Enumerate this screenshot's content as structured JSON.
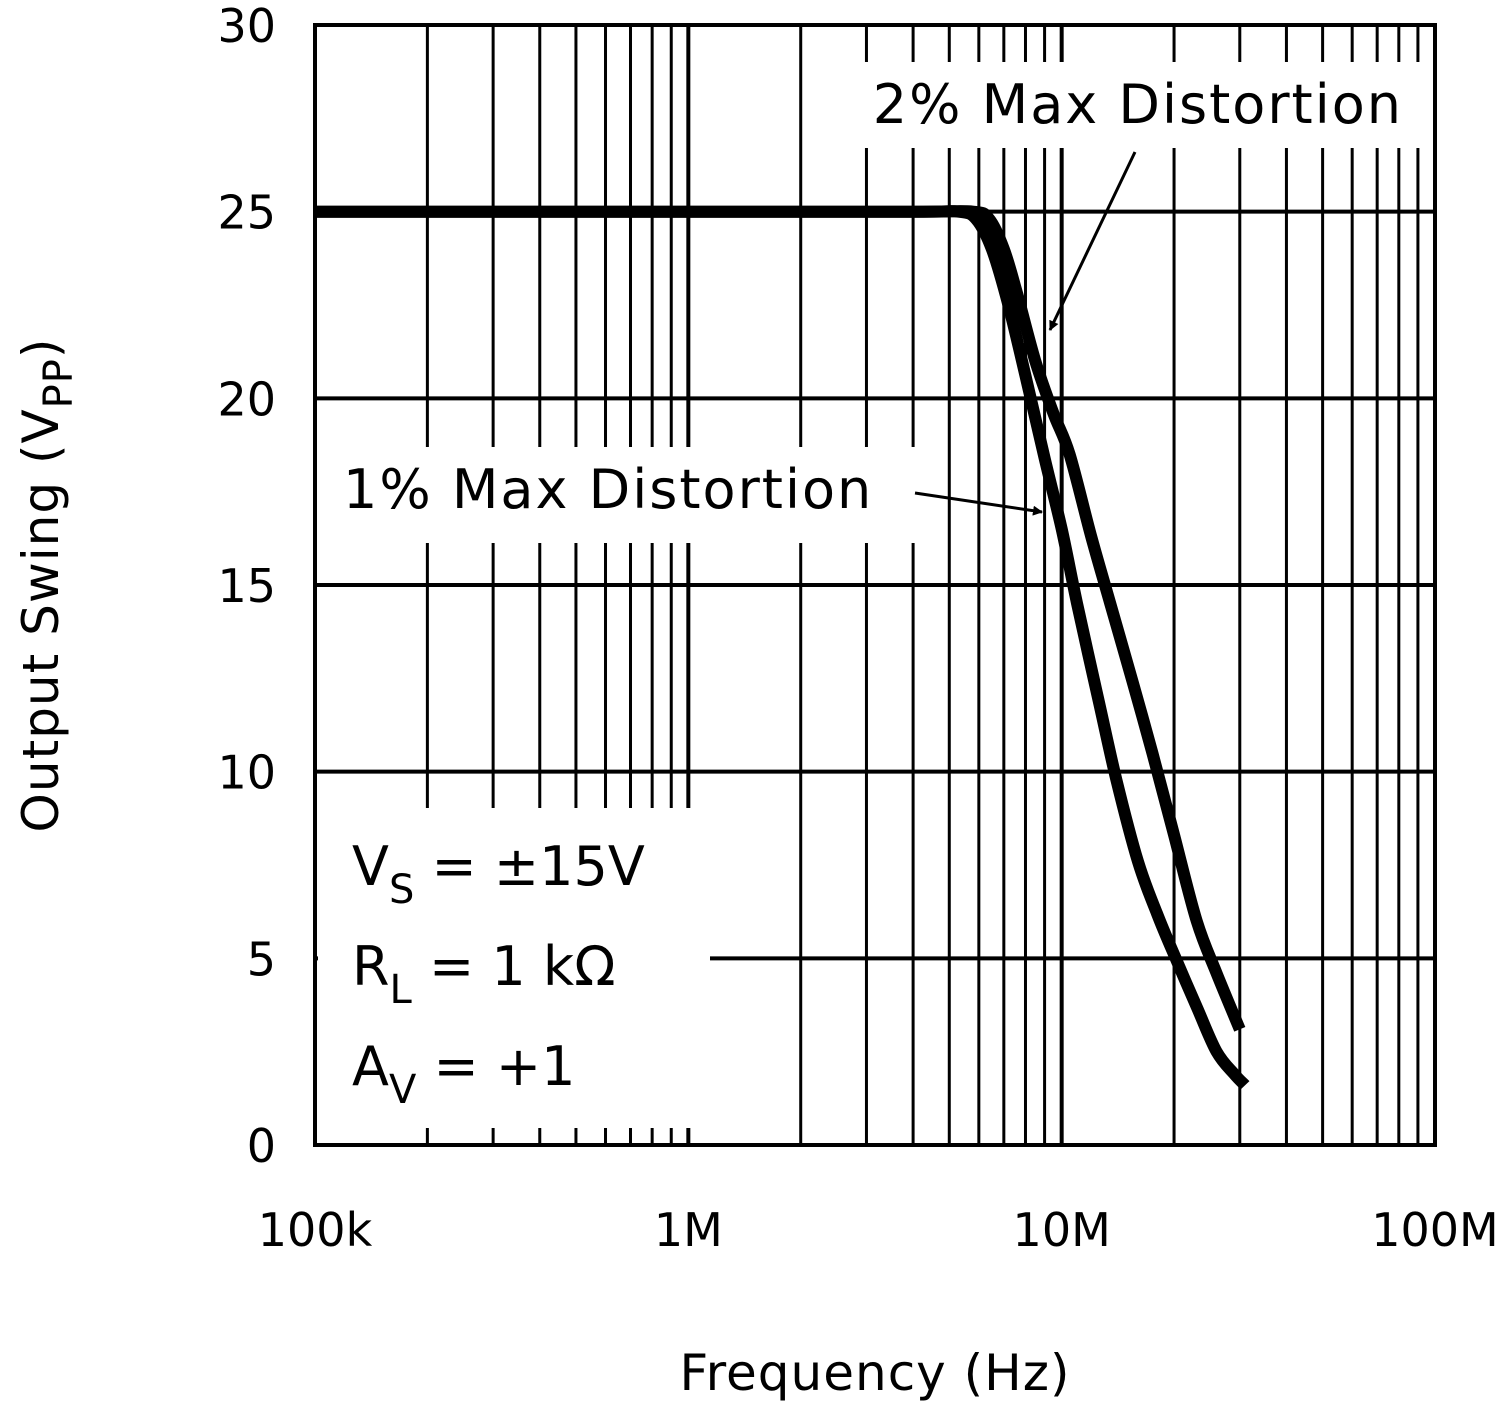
{
  "chart_data": {
    "type": "line",
    "title": "",
    "xlabel": "Frequency (Hz)",
    "ylabel": "Output Swing (V",
    "ylabel_sub": "PP",
    "ylabel_close": ")",
    "xscale": "log",
    "xlim": [
      100000,
      100000000
    ],
    "ylim": [
      0,
      30
    ],
    "grid": true,
    "x_ticks": [
      {
        "value": 100000,
        "label": "100k"
      },
      {
        "value": 1000000,
        "label": "1M"
      },
      {
        "value": 10000000,
        "label": "10M"
      },
      {
        "value": 100000000,
        "label": "100M"
      }
    ],
    "y_ticks": [
      {
        "value": 0,
        "label": "0"
      },
      {
        "value": 5,
        "label": "5"
      },
      {
        "value": 10,
        "label": "10"
      },
      {
        "value": 15,
        "label": "15"
      },
      {
        "value": 20,
        "label": "20"
      },
      {
        "value": 25,
        "label": "25"
      },
      {
        "value": 30,
        "label": "30"
      }
    ],
    "series": [
      {
        "name": "1% Max Distortion",
        "x": [
          100000,
          1000000,
          4000000,
          5300000,
          5900000,
          6500000,
          7200000,
          8000000,
          9000000,
          10000000,
          11000000,
          12500000,
          14000000,
          16000000,
          18000000,
          20000000,
          23000000,
          26000000,
          29000000,
          31000000
        ],
        "y": [
          25,
          25,
          25,
          25,
          24.8,
          24,
          22.5,
          20.6,
          18.4,
          16.5,
          14.5,
          12,
          9.8,
          7.6,
          6.2,
          5.1,
          3.7,
          2.5,
          1.9,
          1.6
        ]
      },
      {
        "name": "2% Max Distortion",
        "x": [
          100000,
          1000000,
          4000000,
          5800000,
          6400000,
          7000000,
          7600000,
          8500000,
          9500000,
          10500000,
          12000000,
          13500000,
          15500000,
          17500000,
          20000000,
          23000000,
          26000000,
          30000000
        ],
        "y": [
          25,
          25,
          25,
          25,
          24.8,
          24,
          22.8,
          21,
          19.6,
          18.5,
          16.3,
          14.5,
          12.4,
          10.5,
          8.3,
          6,
          4.6,
          3.1
        ]
      }
    ],
    "annotations": [
      {
        "text": "2% Max Distortion",
        "series": 1
      },
      {
        "text": "1% Max Distortion",
        "series": 0
      }
    ],
    "conditions": [
      {
        "main": "V",
        "sub": "S",
        "rest": " = ±15V"
      },
      {
        "main": "R",
        "sub": "L",
        "rest": " = 1 kΩ"
      },
      {
        "main": "A",
        "sub": "V",
        "rest": " = +1"
      }
    ]
  }
}
